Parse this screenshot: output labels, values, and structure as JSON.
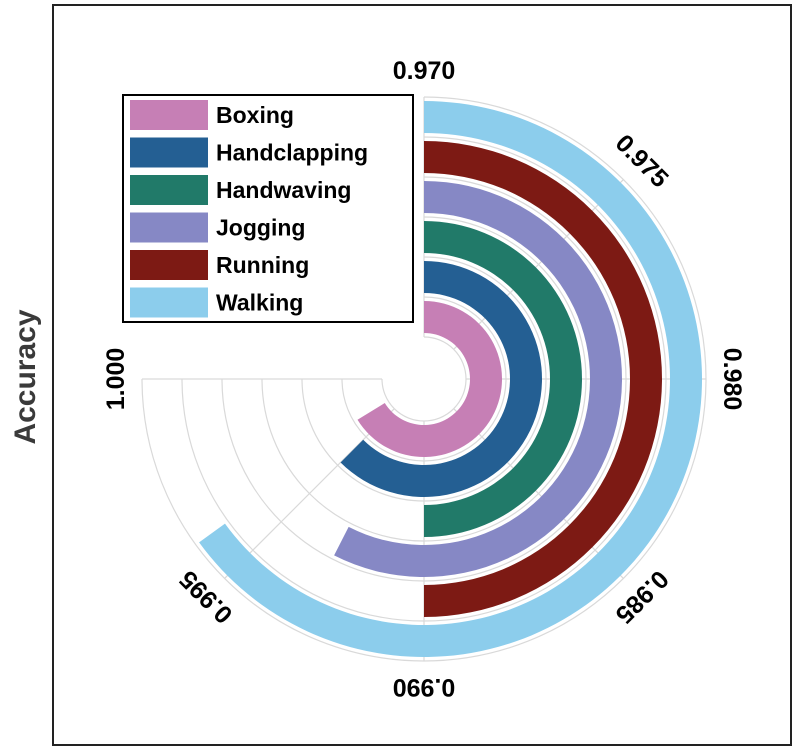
{
  "chart_data": {
    "type": "radial-bar",
    "ylabel": "Accuracy",
    "axis_range": [
      0.97,
      1.0
    ],
    "ticks": [
      "0.970",
      "0.975",
      "0.980",
      "0.985",
      "0.990",
      "0.995",
      "1.000"
    ],
    "series": [
      {
        "name": "Boxing",
        "value": 0.9965,
        "color": "#c67fb5"
      },
      {
        "name": "Handclapping",
        "value": 0.995,
        "color": "#245f93"
      },
      {
        "name": "Handwaving",
        "value": 0.99,
        "color": "#217a69"
      },
      {
        "name": "Jogging",
        "value": 0.993,
        "color": "#8688c5"
      },
      {
        "name": "Running",
        "value": 0.99,
        "color": "#7d1a14"
      },
      {
        "name": "Walking",
        "value": 0.996,
        "color": "#8ccdec"
      }
    ],
    "legend_position": "top-left",
    "grid": true
  }
}
